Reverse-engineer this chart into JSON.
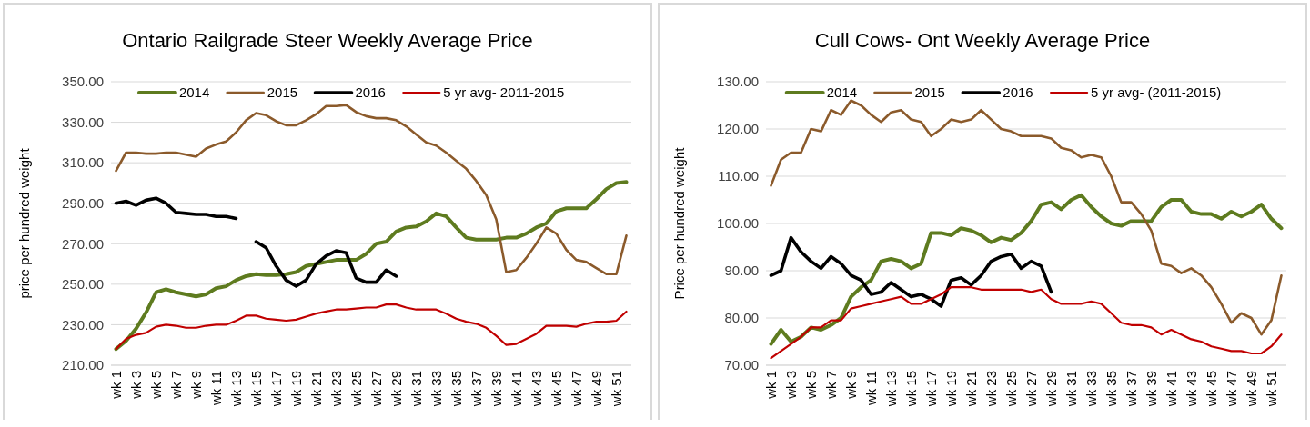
{
  "chart_data": [
    {
      "type": "line",
      "title": "Ontario Railgrade Steer Weekly Average Price",
      "ylabel": "price per hundred weight",
      "categories": [
        "wk 1",
        null,
        "wk 3",
        null,
        "wk 5",
        null,
        "wk 7",
        null,
        "wk 9",
        null,
        "wk 11",
        null,
        "wk 13",
        null,
        "wk 15",
        null,
        "wk 17",
        null,
        "wk 19",
        null,
        "wk 21",
        null,
        "wk 23",
        null,
        "wk 25",
        null,
        "wk 27",
        null,
        "wk 29",
        null,
        "wk 31",
        null,
        "wk 33",
        null,
        "wk 35",
        null,
        "wk 37",
        null,
        "wk 39",
        null,
        "wk 41",
        null,
        "wk 43",
        null,
        "wk 45",
        null,
        "wk 47",
        null,
        "wk 49",
        null,
        "wk 51",
        null
      ],
      "series": [
        {
          "name": "2014",
          "color": "#5e7b1f",
          "values": [
            218,
            222,
            228,
            236,
            246,
            247.5,
            246,
            245,
            244,
            245,
            248,
            249,
            252,
            254,
            255,
            254.5,
            254.5,
            255,
            256,
            259,
            260,
            261,
            262,
            262,
            262,
            265,
            270,
            271,
            276,
            278,
            278.5,
            281,
            285,
            283.5,
            278,
            273,
            272,
            272,
            272,
            273,
            273,
            275,
            278,
            280,
            286,
            287.5,
            287.5,
            287.5,
            292,
            297,
            300,
            300.5
          ]
        },
        {
          "name": "2015",
          "color": "#8b5a2b",
          "values": [
            306,
            315,
            315,
            314.5,
            314.5,
            315,
            315,
            314,
            313,
            317,
            319,
            320.5,
            325,
            331,
            334.5,
            333.5,
            330.5,
            328.5,
            328.5,
            331,
            334,
            338,
            338,
            338.5,
            335,
            333,
            332,
            332,
            331,
            328,
            324,
            320,
            318.5,
            315,
            311,
            307,
            301,
            294,
            282,
            256,
            257,
            263,
            270,
            278,
            275,
            267,
            262,
            261,
            258,
            255,
            255,
            274
          ]
        },
        {
          "name": "2016",
          "color": "#000000",
          "values": [
            290,
            291,
            289,
            291.5,
            292.5,
            290,
            285.5,
            285,
            284.5,
            284.5,
            283.5,
            283.5,
            282.5,
            null,
            271,
            268,
            259,
            252,
            249,
            252,
            260,
            264,
            266.5,
            265.5,
            253,
            251,
            251,
            257,
            254,
            null,
            null,
            null,
            null,
            null,
            null,
            null,
            null,
            null,
            null,
            null,
            null,
            null,
            null,
            null,
            null,
            null,
            null,
            null,
            null,
            null,
            null,
            null
          ]
        },
        {
          "name": "5 yr avg- 2011-2015",
          "color": "#c00000",
          "values": [
            218,
            223,
            225,
            226,
            229,
            230,
            229.5,
            228.5,
            228.5,
            229.5,
            230,
            230,
            232,
            234.5,
            234.5,
            233,
            232.5,
            232,
            232.5,
            234,
            235.5,
            236.5,
            237.5,
            237.5,
            238,
            238.5,
            238.5,
            240,
            240,
            238.5,
            237.5,
            237.5,
            237.5,
            235.5,
            233,
            231.5,
            230.5,
            228.5,
            224.5,
            220,
            220.5,
            223,
            225.5,
            229.5,
            229.5,
            229.5,
            229,
            230.5,
            231.5,
            231.5,
            232,
            236.5
          ]
        }
      ],
      "ylim": [
        210,
        350
      ],
      "yticks": [
        {
          "value": 210,
          "label": "210.00"
        },
        {
          "value": 230,
          "label": "230.00"
        },
        {
          "value": 250,
          "label": "250.00"
        },
        {
          "value": 270,
          "label": "270.00"
        },
        {
          "value": 290,
          "label": "290.00"
        },
        {
          "value": 310,
          "label": "310.00"
        },
        {
          "value": 330,
          "label": "330.00"
        },
        {
          "value": 350,
          "label": "350.00"
        }
      ],
      "grid": "y",
      "legend": "top",
      "marker": "none",
      "line_style": "solid"
    },
    {
      "type": "line",
      "title": "Cull Cows- Ont Weekly Average Price",
      "ylabel": "Price per hundred weight",
      "categories": [
        "wk 1",
        null,
        "wk 3",
        null,
        "wk 5",
        null,
        "wk 7",
        null,
        "wk 9",
        null,
        "wk 11",
        null,
        "wk 13",
        null,
        "wk 15",
        null,
        "wk 17",
        null,
        "wk 19",
        null,
        "wk 21",
        null,
        "wk 23",
        null,
        "wk 25",
        null,
        "wk 27",
        null,
        "wk 29",
        null,
        "wk 31",
        null,
        "wk 33",
        null,
        "wk 35",
        null,
        "wk 37",
        null,
        "wk 39",
        null,
        "wk 41",
        null,
        "wk 43",
        null,
        "wk 45",
        null,
        "wk 47",
        null,
        "wk 49",
        null,
        "wk 51",
        null
      ],
      "series": [
        {
          "name": "2014",
          "color": "#5e7b1f",
          "values": [
            74.5,
            77.5,
            75,
            76,
            78,
            77.5,
            78.5,
            80,
            84.5,
            86.5,
            88,
            92,
            92.5,
            92,
            90.5,
            91.5,
            98,
            98,
            97.5,
            99,
            98.5,
            97.5,
            96,
            97,
            96.5,
            98,
            100.5,
            104,
            104.5,
            103,
            105,
            106,
            103.5,
            101.5,
            100,
            99.5,
            100.5,
            100.5,
            100.5,
            103.5,
            105,
            105,
            102.5,
            102,
            102,
            101,
            102.5,
            101.5,
            102.5,
            104,
            101,
            99
          ]
        },
        {
          "name": "2015",
          "color": "#8b5a2b",
          "values": [
            108,
            113.5,
            115,
            115,
            120,
            119.5,
            124,
            123,
            126,
            125,
            123,
            121.5,
            123.5,
            124,
            122,
            121.5,
            118.5,
            120,
            122,
            121.5,
            122,
            124,
            122,
            120,
            119.5,
            118.5,
            118.5,
            118.5,
            118,
            116,
            115.5,
            114,
            114.5,
            114,
            110,
            104.5,
            104.5,
            102,
            98.5,
            91.5,
            91,
            89.5,
            90.5,
            89,
            86.5,
            83,
            79,
            81,
            80,
            76.5,
            79.5,
            89
          ]
        },
        {
          "name": "2016",
          "color": "#000000",
          "values": [
            89,
            90,
            97,
            94,
            92,
            90.5,
            93,
            91.5,
            89,
            88,
            85,
            85.5,
            87.5,
            86,
            84.5,
            85,
            84,
            82.5,
            88,
            88.5,
            87,
            89,
            92,
            93,
            93.5,
            90.5,
            92,
            91,
            85.5,
            null,
            null,
            null,
            null,
            null,
            null,
            null,
            null,
            null,
            null,
            null,
            null,
            null,
            null,
            null,
            null,
            null,
            null,
            null,
            null,
            null,
            null,
            null
          ]
        },
        {
          "name": "5 yr avg- (2011-2015)",
          "color": "#c00000",
          "values": [
            71.5,
            73,
            74.5,
            76,
            78,
            78,
            79.5,
            79.5,
            82,
            82.5,
            83,
            83.5,
            84,
            84.5,
            83,
            83,
            84,
            85,
            86.5,
            86.5,
            86.5,
            86,
            86,
            86,
            86,
            86,
            85.5,
            86,
            84,
            83,
            83,
            83,
            83.5,
            83,
            81,
            79,
            78.5,
            78.5,
            78,
            76.5,
            77.5,
            76.5,
            75.5,
            75,
            74,
            73.5,
            73,
            73,
            72.5,
            72.5,
            74,
            76.5
          ]
        }
      ],
      "ylim": [
        70,
        130
      ],
      "yticks": [
        {
          "value": 70,
          "label": "70.00"
        },
        {
          "value": 80,
          "label": "80.00"
        },
        {
          "value": 90,
          "label": "90.00"
        },
        {
          "value": 100,
          "label": "100.00"
        },
        {
          "value": 110,
          "label": "110.00"
        },
        {
          "value": 120,
          "label": "120.00"
        },
        {
          "value": 130,
          "label": "130.00"
        }
      ],
      "grid": "y",
      "legend": "top",
      "marker": "none",
      "line_style": "solid"
    }
  ]
}
